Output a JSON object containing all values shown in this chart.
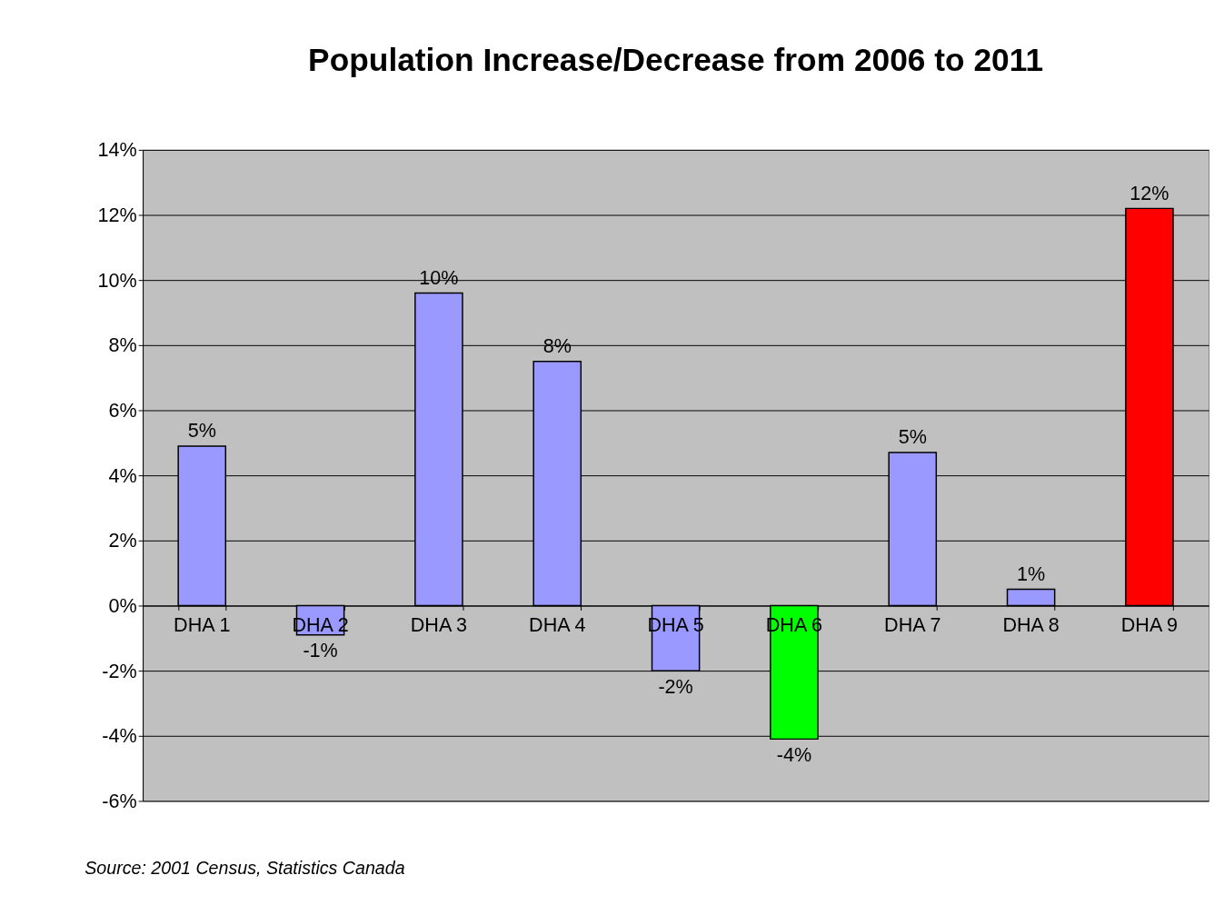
{
  "chart_data": {
    "type": "bar",
    "title": "Population Increase/Decrease from 2006 to 2011",
    "categories": [
      "DHA 1",
      "DHA 2",
      "DHA 3",
      "DHA 4",
      "DHA 5",
      "DHA 6",
      "DHA 7",
      "DHA 8",
      "DHA 9"
    ],
    "values": [
      4.9,
      -0.9,
      9.6,
      7.5,
      -2.0,
      -4.1,
      4.7,
      0.5,
      12.2
    ],
    "colors": [
      "#9999ff",
      "#9999ff",
      "#9999ff",
      "#9999ff",
      "#9999ff",
      "#00ff00",
      "#9999ff",
      "#9999ff",
      "#ff0000"
    ],
    "value_labels": [
      "5%",
      "-1%",
      "10%",
      "8%",
      "-2%",
      "-4%",
      "5%",
      "1%",
      "12%"
    ],
    "ylim": [
      -6,
      14
    ],
    "yticks": [
      {
        "value": -6,
        "label": "-6%"
      },
      {
        "value": -4,
        "label": "-4%"
      },
      {
        "value": -2,
        "label": "-2%"
      },
      {
        "value": 0,
        "label": "0%"
      },
      {
        "value": 2,
        "label": "2%"
      },
      {
        "value": 4,
        "label": "4%"
      },
      {
        "value": 6,
        "label": "6%"
      },
      {
        "value": 8,
        "label": "8%"
      },
      {
        "value": 10,
        "label": "10%"
      },
      {
        "value": 12,
        "label": "12%"
      },
      {
        "value": 14,
        "label": "14%"
      }
    ],
    "grid": "y",
    "annotations": [
      "Source: 2001 Census, Statistics Canada"
    ]
  }
}
